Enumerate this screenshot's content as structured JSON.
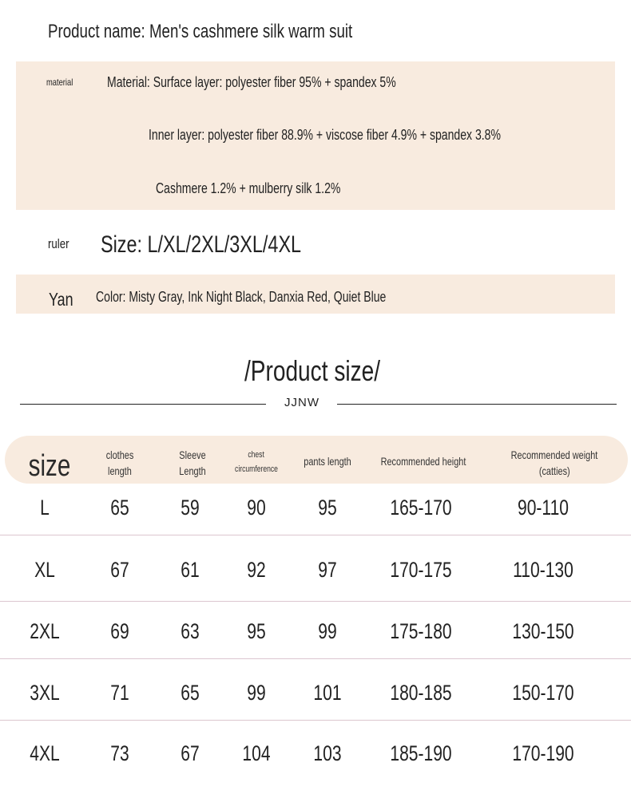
{
  "info": {
    "product_name": "Product name: Men's cashmere silk warm suit",
    "material_label": "material",
    "material_line1": "Material: Surface layer: polyester fiber 95% + spandex 5%",
    "material_line2": "Inner layer: polyester fiber 88.9% + viscose fiber 4.9% + spandex 3.8%",
    "material_line3": "Cashmere 1.2% + mulberry silk 1.2%",
    "size_label": "ruler",
    "size_text": "Size: L/XL/2XL/3XL/4XL",
    "color_label": "Yan",
    "color_text": "Color: Misty Gray, Ink Night Black, Danxia Red, Quiet Blue"
  },
  "section_title": "/Product size/",
  "brand_logo": "JJNW",
  "colors": {
    "band": "#f8ebdf",
    "row_divider": "#dcc6cf"
  },
  "table": {
    "headers": [
      [
        "size"
      ],
      [
        "clothes",
        "length"
      ],
      [
        "Sleeve",
        "Length"
      ],
      [
        "chest",
        "circumference"
      ],
      [
        "pants length"
      ],
      [
        "Recommended height"
      ],
      [
        "Recommended weight",
        "(catties)"
      ]
    ],
    "rows": [
      [
        "L",
        "65",
        "59",
        "90",
        "95",
        "165-170",
        "90-110"
      ],
      [
        "XL",
        "67",
        "61",
        "92",
        "97",
        "170-175",
        "110-130"
      ],
      [
        "2XL",
        "69",
        "63",
        "95",
        "99",
        "175-180",
        "130-150"
      ],
      [
        "3XL",
        "71",
        "65",
        "99",
        "101",
        "180-185",
        "150-170"
      ],
      [
        "4XL",
        "73",
        "67",
        "104",
        "103",
        "185-190",
        "170-190"
      ]
    ]
  }
}
